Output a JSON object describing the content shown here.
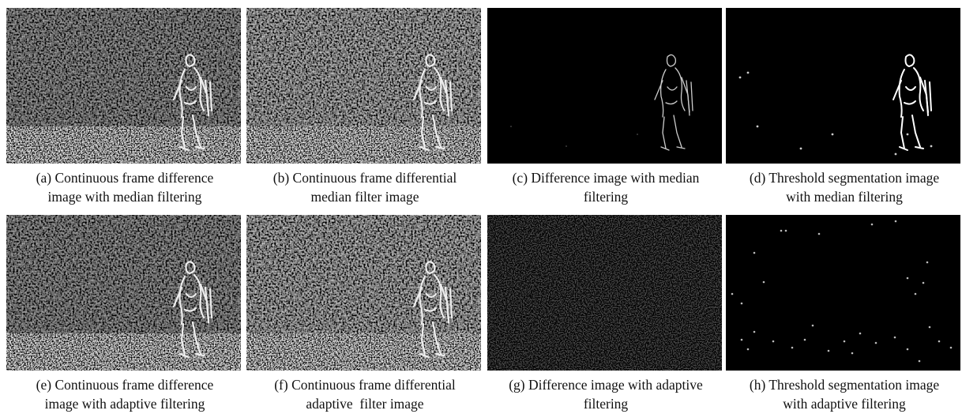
{
  "panels": [
    {
      "lines": [
        "(a) Continuous frame difference",
        "image with median filtering"
      ]
    },
    {
      "lines": [
        "(b) Continuous frame differential",
        "median filter image"
      ]
    },
    {
      "lines": [
        "(c) Difference image with median",
        "filtering"
      ]
    },
    {
      "lines": [
        "(d) Threshold segmentation image",
        "with median filtering"
      ]
    },
    {
      "lines": [
        "(e) Continuous frame difference",
        "image with adaptive filtering"
      ]
    },
    {
      "lines": [
        "(f) Continuous frame differential",
        "adaptive  filter image"
      ]
    },
    {
      "lines": [
        "(g) Difference image with adaptive",
        "filtering"
      ]
    },
    {
      "lines": [
        "(h) Threshold segmentation image",
        "with adaptive filtering"
      ]
    }
  ]
}
